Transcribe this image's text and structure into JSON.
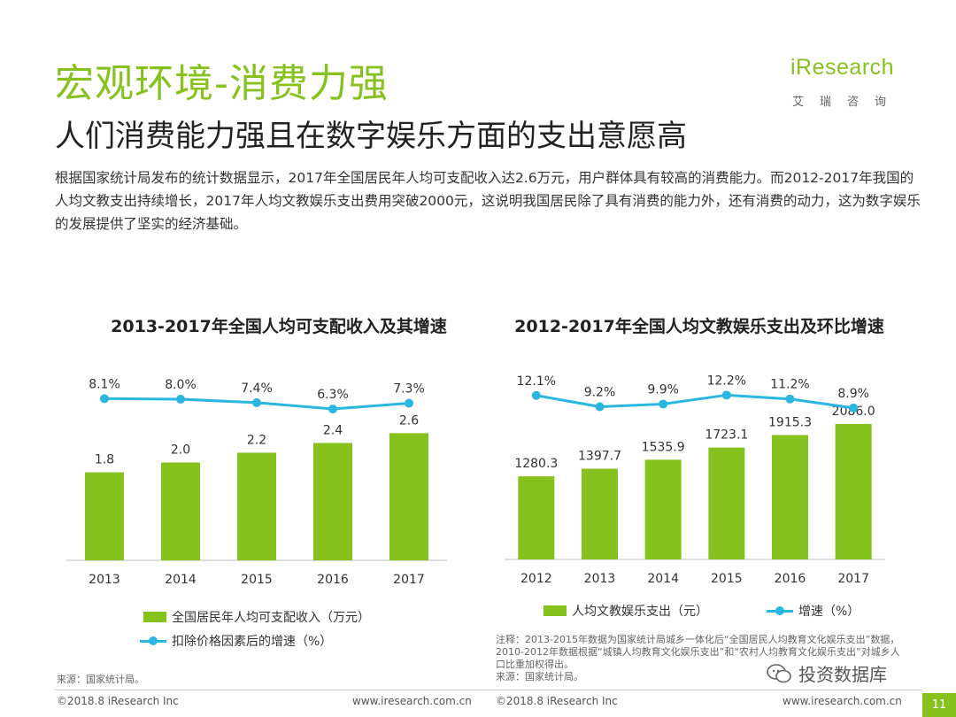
{
  "header": {
    "title": "宏观环境-消费力强",
    "subtitle": "人们消费能力强且在数字娱乐方面的支出意愿高",
    "body": "根据国家统计局发布的统计数据显示，2017年全国居民年人均可支配收入达2.6万元，用户群体具有较高的消费能力。而2012-2017年我国的人均文教支出持续增长，2017年人均文教娱乐支出费用突破2000元，这说明我国居民除了具有消费的能力外，还有消费的动力，这为数字娱乐的发展提供了坚实的经济基础。"
  },
  "logo": {
    "word": "iResearch",
    "sub": "艾瑞咨询"
  },
  "colors": {
    "accent": "#86c21d",
    "line": "#29b6e0"
  },
  "chart_data": [
    {
      "type": "bar",
      "title": "2013-2017年全国人均可支配收入及其增速",
      "categories": [
        "2013",
        "2014",
        "2015",
        "2016",
        "2017"
      ],
      "series": [
        {
          "name": "全国居民年人均可支配收入（万元）",
          "kind": "bar",
          "values": [
            1.8,
            2.0,
            2.2,
            2.4,
            2.6
          ],
          "labels": [
            "1.8",
            "2.0",
            "2.2",
            "2.4",
            "2.6"
          ]
        },
        {
          "name": "扣除价格因素后的增速（%）",
          "kind": "line",
          "values": [
            8.1,
            8.0,
            7.4,
            6.3,
            7.3
          ],
          "labels": [
            "8.1%",
            "8.0%",
            "7.4%",
            "6.3%",
            "7.3%"
          ]
        }
      ],
      "bar_ylim": [
        0,
        4.0
      ],
      "line_ylim": [
        -20,
        14
      ],
      "xlabel": "",
      "ylabel": ""
    },
    {
      "type": "bar",
      "title": "2012-2017年全国人均文教娱乐支出及环比增速",
      "categories": [
        "2012",
        "2013",
        "2014",
        "2015",
        "2016",
        "2017"
      ],
      "series": [
        {
          "name": "人均文教娱乐支出（元）",
          "kind": "bar",
          "values": [
            1280.3,
            1397.7,
            1535.9,
            1723.1,
            1915.3,
            2086.0
          ],
          "labels": [
            "1280.3",
            "1397.7",
            "1535.9",
            "1723.1",
            "1915.3",
            "2086.0"
          ]
        },
        {
          "name": "增速（%）",
          "kind": "line",
          "values": [
            12.1,
            9.2,
            9.9,
            12.2,
            11.2,
            8.9
          ],
          "labels": [
            "12.1%",
            "9.2%",
            "9.9%",
            "12.2%",
            "11.2%",
            "8.9%"
          ]
        }
      ],
      "bar_ylim": [
        0,
        3000
      ],
      "line_ylim": [
        -30,
        20
      ],
      "xlabel": "",
      "ylabel": ""
    }
  ],
  "notes": {
    "chart2": "注释：2013-2015年数据为国家统计局城乡一体化后“全国居民人均教育文化娱乐支出”数据，2010-2012年数据根据“城镇人均教育文化娱乐支出”和“农村人均教育文化娱乐支出”对城乡人口比重加权得出。",
    "source_right": "来源：国家统计局。",
    "source_left": "来源：国家统计局。"
  },
  "footer": {
    "copyright_left": "©2018.8 iResearch Inc",
    "url_left": "www.iresearch.com.cn",
    "copyright_right": "©2018.8 iResearch Inc",
    "url_right": "www.iresearch.com.cn",
    "page": "11"
  },
  "watermark": {
    "text": "投资数据库",
    "icon": "wechat-icon"
  }
}
